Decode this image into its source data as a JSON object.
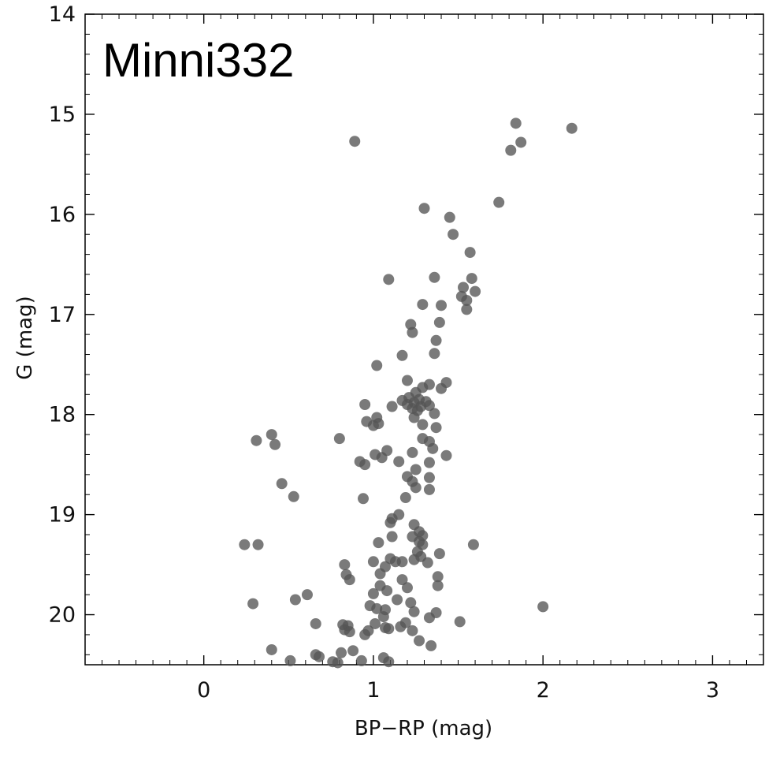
{
  "chart_data": {
    "type": "scatter",
    "title": "Minni332",
    "xlabel": "BP−RP (mag)",
    "ylabel": "G (mag)",
    "xlim": [
      -0.7,
      3.3
    ],
    "ylim": [
      20.5,
      14.0
    ],
    "y_inverted": true,
    "grid": false,
    "marker_color": "#555555",
    "xticks": [
      {
        "v": 0,
        "label": "0"
      },
      {
        "v": 1,
        "label": "1"
      },
      {
        "v": 2,
        "label": "2"
      },
      {
        "v": 3,
        "label": "3"
      }
    ],
    "yticks": [
      {
        "v": 14,
        "label": "14"
      },
      {
        "v": 15,
        "label": "15"
      },
      {
        "v": 16,
        "label": "16"
      },
      {
        "v": 17,
        "label": "17"
      },
      {
        "v": 18,
        "label": "18"
      },
      {
        "v": 19,
        "label": "19"
      },
      {
        "v": 20,
        "label": "20"
      }
    ],
    "points": [
      [
        1.84,
        15.09
      ],
      [
        2.17,
        15.14
      ],
      [
        1.87,
        15.28
      ],
      [
        0.89,
        15.27
      ],
      [
        1.81,
        15.36
      ],
      [
        1.74,
        15.88
      ],
      [
        1.3,
        15.94
      ],
      [
        1.45,
        16.03
      ],
      [
        1.47,
        16.2
      ],
      [
        1.57,
        16.38
      ],
      [
        1.09,
        16.65
      ],
      [
        1.36,
        16.63
      ],
      [
        1.58,
        16.64
      ],
      [
        1.53,
        16.73
      ],
      [
        1.6,
        16.77
      ],
      [
        1.52,
        16.82
      ],
      [
        1.55,
        16.86
      ],
      [
        1.29,
        16.9
      ],
      [
        1.4,
        16.91
      ],
      [
        1.55,
        16.95
      ],
      [
        1.22,
        17.1
      ],
      [
        1.39,
        17.08
      ],
      [
        1.23,
        17.18
      ],
      [
        1.37,
        17.26
      ],
      [
        1.17,
        17.41
      ],
      [
        1.36,
        17.39
      ],
      [
        1.02,
        17.51
      ],
      [
        1.2,
        17.66
      ],
      [
        1.43,
        17.68
      ],
      [
        1.33,
        17.7
      ],
      [
        1.29,
        17.73
      ],
      [
        1.4,
        17.74
      ],
      [
        1.25,
        17.78
      ],
      [
        1.21,
        17.83
      ],
      [
        1.27,
        17.85
      ],
      [
        1.17,
        17.86
      ],
      [
        1.24,
        17.88
      ],
      [
        1.31,
        17.87
      ],
      [
        1.2,
        17.9
      ],
      [
        1.28,
        17.92
      ],
      [
        1.23,
        17.94
      ],
      [
        1.33,
        17.91
      ],
      [
        1.26,
        17.96
      ],
      [
        1.11,
        17.92
      ],
      [
        0.95,
        17.9
      ],
      [
        1.36,
        17.99
      ],
      [
        1.02,
        18.03
      ],
      [
        1.24,
        18.03
      ],
      [
        0.96,
        18.07
      ],
      [
        1.03,
        18.09
      ],
      [
        1.0,
        18.11
      ],
      [
        1.29,
        18.1
      ],
      [
        1.37,
        18.13
      ],
      [
        0.4,
        18.2
      ],
      [
        0.8,
        18.24
      ],
      [
        1.29,
        18.24
      ],
      [
        0.31,
        18.26
      ],
      [
        1.33,
        18.27
      ],
      [
        0.42,
        18.3
      ],
      [
        1.35,
        18.34
      ],
      [
        1.08,
        18.36
      ],
      [
        1.01,
        18.4
      ],
      [
        1.23,
        18.38
      ],
      [
        1.05,
        18.43
      ],
      [
        1.43,
        18.41
      ],
      [
        1.15,
        18.47
      ],
      [
        0.92,
        18.47
      ],
      [
        0.95,
        18.5
      ],
      [
        1.33,
        18.48
      ],
      [
        1.25,
        18.55
      ],
      [
        1.2,
        18.62
      ],
      [
        1.33,
        18.63
      ],
      [
        1.23,
        18.67
      ],
      [
        0.46,
        18.69
      ],
      [
        1.25,
        18.73
      ],
      [
        1.33,
        18.75
      ],
      [
        0.53,
        18.82
      ],
      [
        0.94,
        18.84
      ],
      [
        1.19,
        18.83
      ],
      [
        1.15,
        19.0
      ],
      [
        1.11,
        19.04
      ],
      [
        1.1,
        19.08
      ],
      [
        1.24,
        19.1
      ],
      [
        1.27,
        19.17
      ],
      [
        1.23,
        19.22
      ],
      [
        1.29,
        19.21
      ],
      [
        1.11,
        19.22
      ],
      [
        1.27,
        19.27
      ],
      [
        1.29,
        19.3
      ],
      [
        0.24,
        19.3
      ],
      [
        0.32,
        19.3
      ],
      [
        1.03,
        19.28
      ],
      [
        1.59,
        19.3
      ],
      [
        1.26,
        19.37
      ],
      [
        1.39,
        19.39
      ],
      [
        1.28,
        19.42
      ],
      [
        1.1,
        19.44
      ],
      [
        1.24,
        19.45
      ],
      [
        1.13,
        19.47
      ],
      [
        1.0,
        19.47
      ],
      [
        1.17,
        19.47
      ],
      [
        1.32,
        19.48
      ],
      [
        0.83,
        19.5
      ],
      [
        1.07,
        19.52
      ],
      [
        1.04,
        19.59
      ],
      [
        1.38,
        19.62
      ],
      [
        0.84,
        19.6
      ],
      [
        0.86,
        19.65
      ],
      [
        1.17,
        19.65
      ],
      [
        1.04,
        19.71
      ],
      [
        1.38,
        19.71
      ],
      [
        1.2,
        19.73
      ],
      [
        1.08,
        19.76
      ],
      [
        1.0,
        19.79
      ],
      [
        0.61,
        19.8
      ],
      [
        0.54,
        19.85
      ],
      [
        1.14,
        19.85
      ],
      [
        1.22,
        19.88
      ],
      [
        0.29,
        19.89
      ],
      [
        0.98,
        19.91
      ],
      [
        1.02,
        19.94
      ],
      [
        1.07,
        19.95
      ],
      [
        1.24,
        19.97
      ],
      [
        1.37,
        19.98
      ],
      [
        2.0,
        19.92
      ],
      [
        1.06,
        20.02
      ],
      [
        1.33,
        20.03
      ],
      [
        1.51,
        20.07
      ],
      [
        0.66,
        20.09
      ],
      [
        1.19,
        20.08
      ],
      [
        1.01,
        20.09
      ],
      [
        0.82,
        20.1
      ],
      [
        0.85,
        20.11
      ],
      [
        1.16,
        20.12
      ],
      [
        1.07,
        20.13
      ],
      [
        1.09,
        20.14
      ],
      [
        0.83,
        20.15
      ],
      [
        0.86,
        20.17
      ],
      [
        1.23,
        20.16
      ],
      [
        0.97,
        20.16
      ],
      [
        0.95,
        20.2
      ],
      [
        1.27,
        20.26
      ],
      [
        1.34,
        20.31
      ],
      [
        0.4,
        20.35
      ],
      [
        0.88,
        20.36
      ],
      [
        0.81,
        20.38
      ],
      [
        0.66,
        20.4
      ],
      [
        0.68,
        20.42
      ],
      [
        1.06,
        20.43
      ],
      [
        0.51,
        20.46
      ],
      [
        0.76,
        20.47
      ],
      [
        0.93,
        20.46
      ],
      [
        1.09,
        20.47
      ],
      [
        0.79,
        20.48
      ]
    ]
  }
}
